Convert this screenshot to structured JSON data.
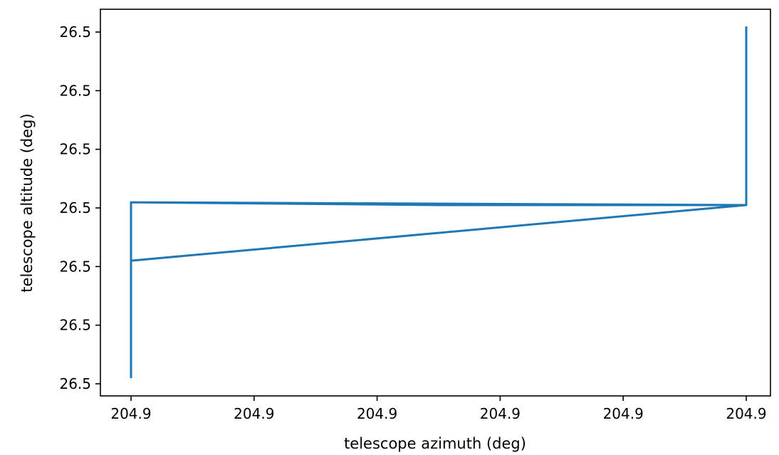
{
  "chart_data": {
    "type": "line",
    "xlabel": "telescope azimuth (deg)",
    "ylabel": "telescope altitude (deg)",
    "title": "",
    "xlim": [
      0,
      1
    ],
    "ylim": [
      0,
      1
    ],
    "x_ticks": [
      {
        "value": 0.0,
        "label": "204.9"
      },
      {
        "value": 0.2,
        "label": "204.9"
      },
      {
        "value": 0.4,
        "label": "204.9"
      },
      {
        "value": 0.6,
        "label": "204.9"
      },
      {
        "value": 0.8,
        "label": "204.9"
      },
      {
        "value": 1.0,
        "label": "204.9"
      }
    ],
    "y_ticks": [
      {
        "value": 0.0,
        "label": "26.5"
      },
      {
        "value": 0.1667,
        "label": "26.5"
      },
      {
        "value": 0.3333,
        "label": "26.5"
      },
      {
        "value": 0.5,
        "label": "26.5"
      },
      {
        "value": 0.6667,
        "label": "26.5"
      },
      {
        "value": 0.8333,
        "label": "26.5"
      },
      {
        "value": 1.0,
        "label": "26.5"
      }
    ],
    "grid": false,
    "series": [
      {
        "color": "#1f77b4",
        "x": [
          0.0,
          0.0,
          0.0,
          1.0,
          1.0,
          0.5,
          0.0,
          0.0,
          1.0,
          1.0,
          1.0
        ],
        "y": [
          0.016,
          0.35,
          0.516,
          0.508,
          0.508,
          0.508,
          0.516,
          0.35,
          0.508,
          0.69,
          1.016
        ]
      }
    ]
  }
}
